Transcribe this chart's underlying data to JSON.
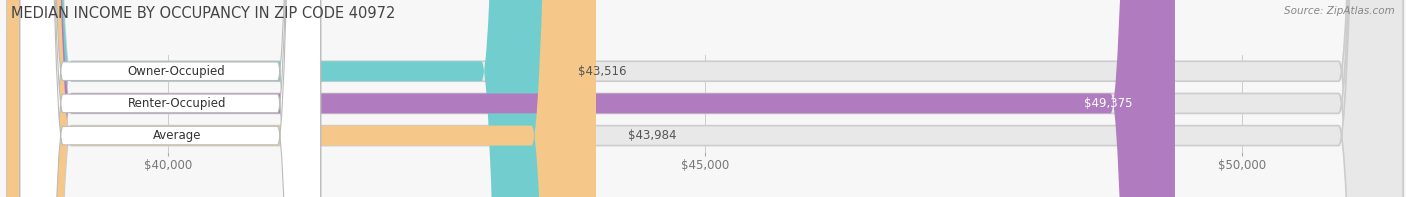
{
  "title": "MEDIAN INCOME BY OCCUPANCY IN ZIP CODE 40972",
  "source": "Source: ZipAtlas.com",
  "categories": [
    "Owner-Occupied",
    "Renter-Occupied",
    "Average"
  ],
  "values": [
    43516,
    49375,
    43984
  ],
  "bar_colors": [
    "#72cece",
    "#b07cbf",
    "#f5c88a"
  ],
  "bar_bg_color": "#e8e8e8",
  "value_labels": [
    "$43,516",
    "$49,375",
    "$43,984"
  ],
  "x_min": 38500,
  "x_max": 51500,
  "x_ticks": [
    40000,
    45000,
    50000
  ],
  "x_tick_labels": [
    "$40,000",
    "$45,000",
    "$50,000"
  ],
  "background_color": "#f7f7f7",
  "title_fontsize": 10.5,
  "tick_fontsize": 8.5,
  "bar_height": 0.62,
  "cat_label_fontsize": 8.5,
  "val_label_fontsize": 8.5
}
